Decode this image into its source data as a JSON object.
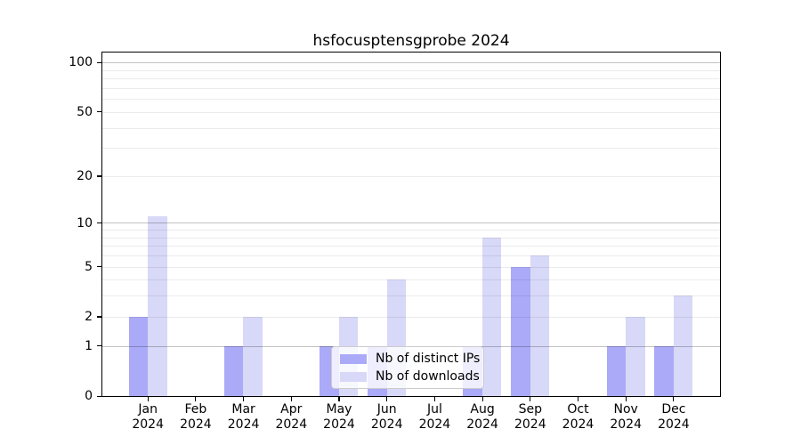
{
  "chart_data": {
    "type": "bar",
    "title": "hsfocusptensgprobe 2024",
    "categories": [
      "Jan",
      "Feb",
      "Mar",
      "Apr",
      "May",
      "Jun",
      "Jul",
      "Aug",
      "Sep",
      "Oct",
      "Nov",
      "Dec"
    ],
    "year_label": "2024",
    "series": [
      {
        "name": "Nb of distinct IPs",
        "color": "#aaaaf8",
        "values": [
          2,
          0,
          1,
          0,
          1,
          1,
          0,
          1,
          5,
          0,
          1,
          1
        ]
      },
      {
        "name": "Nb of downloads",
        "color": "#d8d8f8",
        "values": [
          11,
          0,
          2,
          0,
          2,
          4,
          0,
          8,
          6,
          0,
          2,
          3
        ]
      }
    ],
    "yscale": "log1p",
    "ylim": [
      0,
      115
    ],
    "yticks_labeled": [
      0,
      1,
      2,
      5,
      10,
      20,
      50,
      100
    ],
    "gridlines_major": [
      1,
      10,
      100
    ],
    "gridlines_minor": [
      2,
      3,
      4,
      5,
      6,
      7,
      8,
      9,
      20,
      30,
      40,
      50,
      60,
      70,
      80,
      90
    ],
    "grid": true,
    "legend_position": "lower center"
  }
}
